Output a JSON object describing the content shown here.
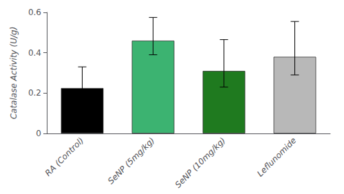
{
  "chart_data": {
    "type": "bar",
    "categories": [
      "RA (Control)",
      "SeNP (5mg/kg)",
      "SeNP (10mg/kg)",
      "Leflunomide"
    ],
    "values": [
      0.225,
      0.46,
      0.31,
      0.38
    ],
    "errors_upper": [
      0.105,
      0.115,
      0.155,
      0.175
    ],
    "errors_lower": [
      0.055,
      0.07,
      0.08,
      0.09
    ],
    "colors": [
      "#000000",
      "#3CB371",
      "#1F7A1F",
      "#B8B8B8"
    ],
    "ylabel": "Catalase Activity (U/g)",
    "ylim": [
      0,
      0.6
    ],
    "yticks": [
      0.0,
      0.2,
      0.4,
      0.6
    ],
    "grid": false
  }
}
